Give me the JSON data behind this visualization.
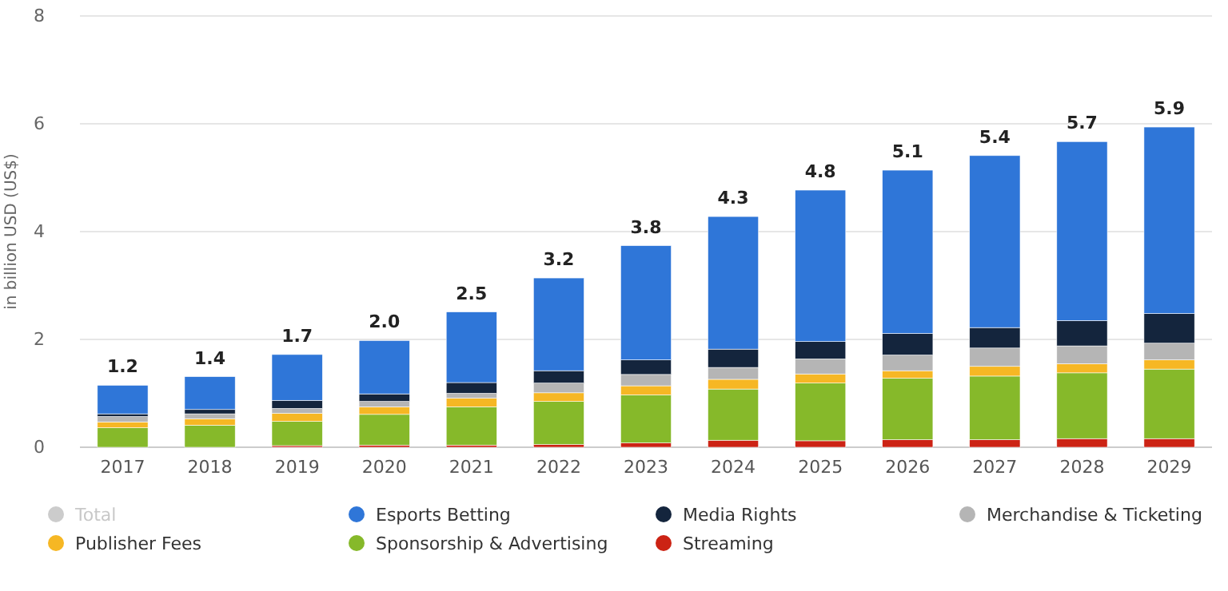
{
  "chart_data": {
    "type": "bar",
    "stacked": true,
    "ylabel": "in billion USD (US$)",
    "categories": [
      "2017",
      "2018",
      "2019",
      "2020",
      "2021",
      "2022",
      "2023",
      "2024",
      "2025",
      "2026",
      "2027",
      "2028",
      "2029"
    ],
    "series": [
      {
        "name": "Streaming",
        "color": "#cc2314",
        "values": [
          null,
          null,
          0.03,
          0.04,
          0.04,
          0.05,
          0.08,
          0.13,
          0.12,
          0.14,
          0.14,
          0.16,
          0.16
        ]
      },
      {
        "name": "Sponsorship & Advertising",
        "color": "#86b92a",
        "values": [
          0.36,
          0.41,
          0.45,
          0.57,
          0.71,
          0.8,
          0.89,
          0.95,
          1.07,
          1.14,
          1.18,
          1.22,
          1.29
        ]
      },
      {
        "name": "Publisher Fees",
        "color": "#f6b724",
        "values": [
          0.11,
          0.12,
          0.15,
          0.14,
          0.16,
          0.16,
          0.17,
          0.18,
          0.17,
          0.14,
          0.18,
          0.17,
          0.17
        ]
      },
      {
        "name": "Merchandise & Ticketing",
        "color": "#b5b5b5",
        "values": [
          0.1,
          0.09,
          0.09,
          0.1,
          0.09,
          0.18,
          0.21,
          0.22,
          0.28,
          0.29,
          0.34,
          0.33,
          0.31
        ]
      },
      {
        "name": "Media Rights",
        "color": "#14253d",
        "values": [
          0.05,
          0.08,
          0.15,
          0.14,
          0.2,
          0.23,
          0.27,
          0.34,
          0.32,
          0.4,
          0.38,
          0.47,
          0.55
        ]
      },
      {
        "name": "Esports Betting",
        "color": "#2f76d8",
        "values": [
          0.53,
          0.61,
          0.85,
          0.99,
          1.31,
          1.72,
          2.12,
          2.46,
          2.81,
          3.03,
          3.19,
          3.32,
          3.46
        ]
      },
      {
        "name": "Total",
        "color": "#cccccc",
        "values": [
          null,
          null,
          null,
          null,
          null,
          null,
          null,
          null,
          null,
          null,
          null,
          null,
          null
        ]
      }
    ],
    "totals": [
      "1.2",
      "1.4",
      "1.7",
      "2.0",
      "2.5",
      "3.2",
      "3.8",
      "4.3",
      "4.8",
      "5.1",
      "5.4",
      "5.7",
      "5.9"
    ],
    "ylim": [
      0,
      8
    ],
    "yticks": [
      0,
      2,
      4,
      6,
      8
    ],
    "grid": "y",
    "legend": "bottom"
  }
}
